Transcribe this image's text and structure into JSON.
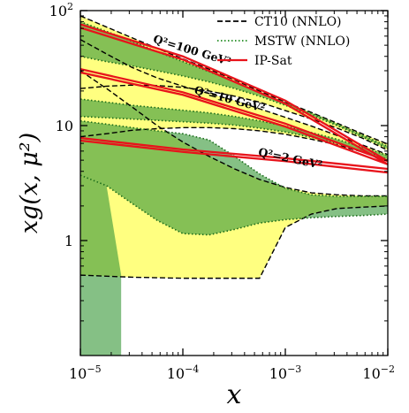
{
  "chart_data": {
    "type": "area",
    "title": "",
    "xlabel": "x",
    "ylabel": "xg(x, μ²)",
    "x_scale": "log",
    "y_scale": "log",
    "xlim": [
      1e-05,
      0.01
    ],
    "ylim": [
      0.1,
      100
    ],
    "grid": false,
    "legend_position": "top-right",
    "x_ticks": [
      {
        "value": 1e-05,
        "base": "10",
        "exp": "−5"
      },
      {
        "value": 0.0001,
        "base": "10",
        "exp": "−4"
      },
      {
        "value": 0.001,
        "base": "10",
        "exp": "−3"
      },
      {
        "value": 0.01,
        "base": "10",
        "exp": "−2"
      }
    ],
    "y_ticks": [
      {
        "value": 1,
        "base": "1",
        "exp": ""
      },
      {
        "value": 10,
        "base": "10",
        "exp": ""
      },
      {
        "value": 100,
        "base": "10",
        "exp": "2"
      }
    ],
    "legend": [
      {
        "label": "CT10 (NNLO)",
        "style": "dashed",
        "color": "#000000"
      },
      {
        "label": "MSTW (NNLO)",
        "style": "dotted",
        "color": "#1f8a1f"
      },
      {
        "label": "IP-Sat",
        "style": "solid",
        "color": "#e8131b"
      }
    ],
    "annotations": [
      {
        "text": "Q²=100 GeV²",
        "x": 0.00012,
        "y": 42
      },
      {
        "text": "Q²=10 GeV²",
        "x": 0.00028,
        "y": 15.8
      },
      {
        "text": "Q²=2 GeV²",
        "x": 0.0011,
        "y": 4.8
      }
    ],
    "colors": {
      "ct10_band": "#ffff80",
      "mstw_band": "#3a9a3a",
      "mstw_alpha": 0.62,
      "ipsat_line": "#e8131b"
    },
    "series": [
      {
        "Q2": "100 GeV²",
        "ct10": {
          "x": [
            1e-05,
            1.8e-05,
            3.2e-05,
            5.6e-05,
            0.0001,
            0.00018,
            0.00032,
            0.00056,
            0.001,
            0.0018,
            0.0032,
            0.0056,
            0.01
          ],
          "upper": [
            90,
            72,
            58,
            47,
            38,
            31,
            25,
            20,
            16,
            13,
            10.5,
            8.5,
            6.9
          ],
          "lower": [
            21,
            22,
            22.5,
            22.3,
            21.5,
            20,
            18,
            16,
            13.5,
            11.4,
            9.5,
            7.8,
            6.1
          ]
        },
        "mstw": {
          "x": [
            1e-05,
            1.8e-05,
            3.2e-05,
            5.6e-05,
            0.0001,
            0.00018,
            0.00032,
            0.00056,
            0.001,
            0.0018,
            0.0032,
            0.0056,
            0.01
          ],
          "upper": [
            80,
            66,
            54,
            44,
            36,
            29.5,
            24,
            19.5,
            15.8,
            12.8,
            10.3,
            8.3,
            6.6
          ],
          "lower": [
            40,
            36,
            33,
            30,
            27,
            24,
            21,
            18,
            15,
            12.3,
            10,
            8,
            6.3
          ]
        },
        "ipsat": {
          "x": [
            1e-05,
            0.0001,
            0.001,
            0.01
          ],
          "upper": [
            76,
            40,
            16.5,
            4.9
          ],
          "lower": [
            71,
            37.5,
            15.5,
            4.6
          ]
        }
      },
      {
        "Q2": "10 GeV²",
        "ct10": {
          "x": [
            1e-05,
            1.8e-05,
            3.2e-05,
            5.6e-05,
            0.0001,
            0.00018,
            0.00032,
            0.00056,
            0.001,
            0.0018,
            0.0032,
            0.0056,
            0.01
          ],
          "upper": [
            56,
            42,
            32,
            26,
            22,
            19,
            16.5,
            14,
            11.8,
            9.9,
            8.2,
            6.8,
            5.6
          ],
          "lower": [
            8,
            8.5,
            9.1,
            9.4,
            9.6,
            9.6,
            9.4,
            9,
            8.4,
            7.6,
            6.8,
            5.9,
            5.0
          ]
        },
        "mstw": {
          "x": [
            1e-05,
            1.8e-05,
            3.2e-05,
            5.6e-05,
            0.0001,
            0.00018,
            0.00032,
            0.00056,
            0.001,
            0.0018,
            0.0032,
            0.0056,
            0.01
          ],
          "upper": [
            17,
            16,
            15,
            14.3,
            13.6,
            12.9,
            12,
            11,
            9.9,
            8.7,
            7.6,
            6.5,
            5.5
          ],
          "lower": [
            12,
            11.7,
            11.4,
            11.1,
            10.8,
            10.5,
            10.1,
            9.5,
            8.8,
            7.9,
            7,
            6,
            5.1
          ]
        },
        "ipsat": {
          "x": [
            1e-05,
            0.0001,
            0.001,
            0.01
          ],
          "upper": [
            31,
            19.5,
            10.4,
            4.9
          ],
          "lower": [
            29,
            18.5,
            9.8,
            4.6
          ]
        }
      },
      {
        "Q2": "2 GeV²",
        "ct10": {
          "x": [
            1e-05,
            1.8e-05,
            3.2e-05,
            5.6e-05,
            0.0001,
            0.00018,
            0.00032,
            0.00056,
            0.001,
            0.0018,
            0.0032,
            0.0056,
            0.01
          ],
          "upper": [
            30,
            21,
            14.5,
            10,
            7.2,
            5.4,
            4.2,
            3.4,
            2.9,
            2.6,
            2.5,
            2.45,
            2.45
          ],
          "lower": [
            0.5,
            0.49,
            0.48,
            0.475,
            0.47,
            0.47,
            0.47,
            0.47,
            1.3,
            1.7,
            1.9,
            1.95,
            2.0
          ]
        },
        "mstw": {
          "x": [
            1e-05,
            1.8e-05,
            3.2e-05,
            5.6e-05,
            0.0001,
            0.00018,
            0.00032,
            0.00056,
            0.001,
            0.0018,
            0.0032,
            0.0056,
            0.01
          ],
          "upper": [
            11,
            10.3,
            9.6,
            9,
            8.5,
            7.5,
            5.4,
            3.8,
            2.85,
            2.5,
            2.42,
            2.42,
            2.42
          ],
          "lower": [
            3.7,
            3,
            2.1,
            1.5,
            1.15,
            1.12,
            1.25,
            1.42,
            1.52,
            1.58,
            1.62,
            1.65,
            1.7
          ]
        },
        "mstw_low": {
          "x": [
            1e-05,
            1.8e-05,
            2.5e-05
          ],
          "upper": [
            3.7,
            3,
            0.5
          ],
          "lower": [
            0.1,
            0.1,
            0.1
          ]
        },
        "ipsat": {
          "x": [
            1e-05,
            0.0001,
            0.001,
            0.01
          ],
          "upper": [
            7.8,
            6.2,
            5.2,
            4.2
          ],
          "lower": [
            7.4,
            5.9,
            4.9,
            3.9
          ]
        }
      }
    ]
  }
}
